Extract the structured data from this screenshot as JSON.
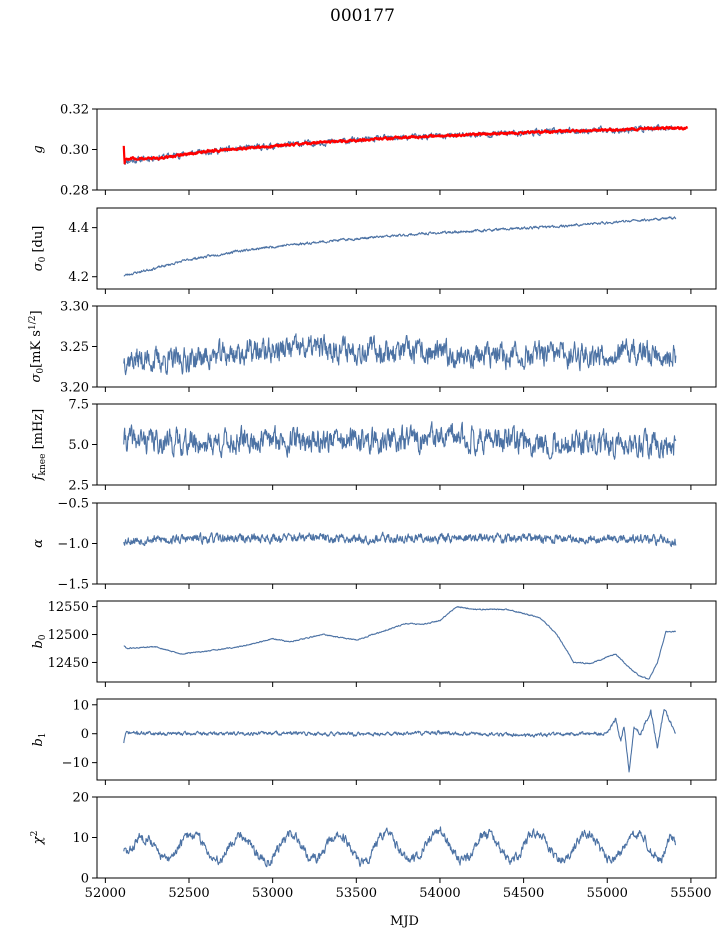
{
  "figure": {
    "title": "000177",
    "xlabel": "MJD"
  },
  "colors": {
    "series": "#4c72a4",
    "overlay": "#ff0000",
    "axis": "#000000"
  },
  "x_axis": {
    "range": [
      51950,
      55650
    ],
    "ticks": [
      52000,
      52500,
      53000,
      53500,
      54000,
      54500,
      55000,
      55500
    ],
    "tick_labels": [
      "52000",
      "52500",
      "53000",
      "53500",
      "54000",
      "54500",
      "55000",
      "55500"
    ]
  },
  "chart_data": [
    {
      "type": "line",
      "ylabel_main": "g",
      "ylabel_sub": "",
      "ylabel_sup": "",
      "ylim": [
        0.28,
        0.32
      ],
      "yticks": [
        0.28,
        0.3,
        0.32
      ],
      "ytick_labels": [
        "0.28",
        "0.30",
        "0.32"
      ],
      "noise": 0.0012,
      "seed": 11,
      "series": [
        {
          "name": "",
          "x": [
            52110,
            52300,
            52600,
            52900,
            53200,
            53500,
            53800,
            54100,
            54400,
            54700,
            55000,
            55300,
            55410
          ],
          "y": [
            0.294,
            0.296,
            0.299,
            0.301,
            0.303,
            0.3045,
            0.306,
            0.307,
            0.308,
            0.309,
            0.3095,
            0.3105,
            0.3105
          ]
        },
        {
          "name": "",
          "x": [
            52110,
            52115,
            52120,
            52300,
            52600,
            52900,
            53200,
            53500,
            53800,
            54100,
            54400,
            54700,
            55000,
            55300,
            55480
          ],
          "y": [
            0.302,
            0.293,
            0.2955,
            0.2955,
            0.299,
            0.301,
            0.303,
            0.3045,
            0.306,
            0.307,
            0.308,
            0.309,
            0.3095,
            0.3105,
            0.3105
          ],
          "color_key": "overlay"
        }
      ]
    },
    {
      "type": "line",
      "ylabel_main": "σ",
      "ylabel_sub": "0",
      "ylabel_sup": "",
      "ylabel_unit": " [du]",
      "ylim": [
        4.15,
        4.48
      ],
      "yticks": [
        4.2,
        4.4
      ],
      "ytick_labels": [
        "4.2",
        "4.4"
      ],
      "noise": 0.004,
      "seed": 23,
      "series": [
        {
          "name": "",
          "x": [
            52110,
            52300,
            52500,
            52800,
            53100,
            53500,
            53900,
            54300,
            54700,
            55000,
            55300,
            55410
          ],
          "y": [
            4.205,
            4.235,
            4.27,
            4.305,
            4.33,
            4.355,
            4.375,
            4.39,
            4.405,
            4.42,
            4.435,
            4.44
          ]
        }
      ]
    },
    {
      "type": "line",
      "ylabel_main": "σ",
      "ylabel_sub": "0",
      "ylabel_sup": "",
      "ylabel_unit": "[mK s",
      "ylabel_unit_sup": "1/2",
      "ylabel_unit_end": "]",
      "ylim": [
        3.2,
        3.3
      ],
      "yticks": [
        3.2,
        3.25,
        3.3
      ],
      "ytick_labels": [
        "3.20",
        "3.25",
        "3.30"
      ],
      "noise": 0.012,
      "seed": 37,
      "series": [
        {
          "name": "",
          "x": [
            52110,
            52400,
            52800,
            53200,
            53600,
            54000,
            54400,
            54800,
            55200,
            55410
          ],
          "y": [
            3.235,
            3.232,
            3.242,
            3.248,
            3.246,
            3.24,
            3.238,
            3.24,
            3.242,
            3.238
          ]
        }
      ]
    },
    {
      "type": "line",
      "ylabel_main": "f",
      "ylabel_sub": "knee",
      "ylabel_sup": "",
      "ylabel_unit": " [mHz]",
      "ylim": [
        2.5,
        7.5
      ],
      "yticks": [
        2.5,
        5.0,
        7.5
      ],
      "ytick_labels": [
        "2.5",
        "5.0",
        "7.5"
      ],
      "noise": 0.6,
      "seed": 41,
      "series": [
        {
          "name": "",
          "x": [
            52110,
            52600,
            53100,
            53600,
            54100,
            54600,
            55100,
            55410
          ],
          "y": [
            5.3,
            5.1,
            5.3,
            5.2,
            5.4,
            5.1,
            4.9,
            5.0
          ]
        }
      ]
    },
    {
      "type": "line",
      "ylabel_main": "α",
      "ylabel_sub": "",
      "ylabel_sup": "",
      "ylim": [
        -1.5,
        -0.5
      ],
      "yticks": [
        -1.5,
        -1.0,
        -0.5
      ],
      "ytick_labels": [
        "−1.5",
        "−1.0",
        "−0.5"
      ],
      "noise": 0.045,
      "seed": 53,
      "series": [
        {
          "name": "",
          "x": [
            52110,
            52600,
            53100,
            53600,
            54100,
            54600,
            55100,
            55410
          ],
          "y": [
            -0.96,
            -0.94,
            -0.93,
            -0.94,
            -0.93,
            -0.94,
            -0.94,
            -0.97
          ]
        }
      ]
    },
    {
      "type": "line",
      "ylabel_main": "b",
      "ylabel_sub": "0",
      "ylabel_sup": "",
      "ylim": [
        12415,
        12560
      ],
      "yticks": [
        12450,
        12500,
        12550
      ],
      "ytick_labels": [
        "12450",
        "12500",
        "12550"
      ],
      "noise": 0.8,
      "seed": 61,
      "series": [
        {
          "name": "",
          "x": [
            52110,
            52130,
            52300,
            52450,
            52600,
            52800,
            53000,
            53100,
            53300,
            53500,
            53600,
            53800,
            53900,
            54000,
            54100,
            54200,
            54400,
            54600,
            54700,
            54800,
            54900,
            55000,
            55050,
            55100,
            55150,
            55200,
            55250,
            55300,
            55350,
            55410
          ],
          "y": [
            12480,
            12475,
            12478,
            12465,
            12470,
            12478,
            12492,
            12487,
            12500,
            12490,
            12500,
            12520,
            12518,
            12525,
            12550,
            12545,
            12545,
            12530,
            12500,
            12450,
            12448,
            12460,
            12465,
            12450,
            12435,
            12425,
            12420,
            12450,
            12505,
            12505
          ]
        }
      ]
    },
    {
      "type": "line",
      "ylabel_main": "b",
      "ylabel_sub": "1",
      "ylabel_sup": "",
      "ylim": [
        -16,
        12
      ],
      "yticks": [
        -10,
        0,
        10
      ],
      "ytick_labels": [
        "−10",
        "0",
        "10"
      ],
      "noise": 0.5,
      "seed": 71,
      "series": [
        {
          "name": "",
          "x": [
            52110,
            52120,
            52130,
            52500,
            53000,
            53500,
            54000,
            54500,
            55000,
            55050,
            55080,
            55100,
            55130,
            55160,
            55200,
            55260,
            55300,
            55340,
            55410
          ],
          "y": [
            -3,
            0,
            0.3,
            0,
            0.2,
            -0.2,
            0.3,
            -0.5,
            0,
            5,
            -3,
            3,
            -13,
            2,
            0,
            8,
            -5,
            9,
            0
          ]
        }
      ]
    },
    {
      "type": "line",
      "ylabel_main": "χ",
      "ylabel_sub": "",
      "ylabel_sup": "2",
      "ylim": [
        0,
        20
      ],
      "yticks": [
        0,
        10,
        20
      ],
      "ytick_labels": [
        "0",
        "10",
        "20"
      ],
      "noise": 0.9,
      "seed": 83,
      "series": [
        {
          "name": "",
          "x": [
            52110,
            52140,
            52200,
            52260,
            52320,
            52380,
            52440,
            52500,
            52560,
            52620,
            52680,
            52740,
            52800,
            52860,
            52920,
            52980,
            53040,
            53100,
            53160,
            53220,
            53280,
            53340,
            53400,
            53460,
            53520,
            53580,
            53640,
            53700,
            53760,
            53820,
            53880,
            53940,
            54000,
            54060,
            54120,
            54180,
            54240,
            54300,
            54360,
            54420,
            54480,
            54540,
            54600,
            54660,
            54720,
            54780,
            54840,
            54900,
            54960,
            55020,
            55080,
            55140,
            55200,
            55260,
            55320,
            55380,
            55410
          ],
          "y": [
            7,
            6,
            10,
            10,
            6,
            4,
            8,
            11,
            10,
            6,
            4,
            8,
            11,
            9,
            5,
            4,
            8,
            11,
            9,
            5,
            5,
            9,
            11,
            8,
            4,
            5,
            10,
            11,
            7,
            4,
            6,
            10,
            12,
            8,
            4,
            5,
            10,
            11,
            7,
            4,
            6,
            11,
            11,
            7,
            4,
            6,
            10,
            11,
            7,
            4,
            6,
            10,
            11,
            7,
            4,
            11,
            9
          ]
        }
      ]
    }
  ]
}
